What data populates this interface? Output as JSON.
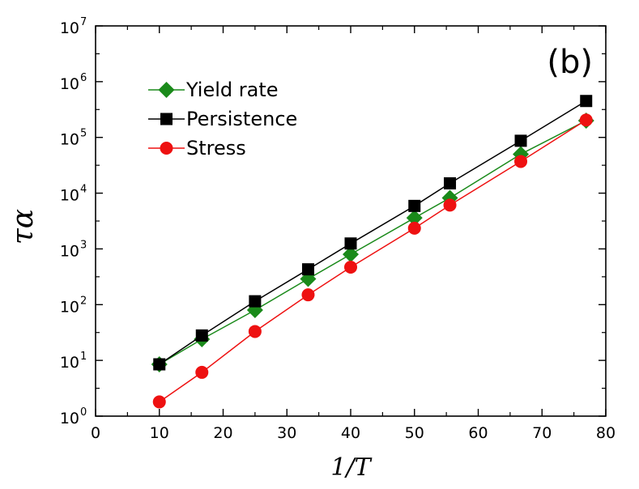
{
  "chart_data": {
    "type": "line",
    "panel_label": "(b)",
    "xlabel": "1/T",
    "ylabel": "τα",
    "xlim": [
      0,
      80
    ],
    "ylim": [
      1,
      10000000
    ],
    "yscale": "log",
    "grid": false,
    "legend_position": "top-left",
    "x_ticks": [
      "0",
      "10",
      "20",
      "30",
      "40",
      "50",
      "60",
      "70",
      "80"
    ],
    "y_tick_base": "10",
    "y_tick_exponents": [
      "0",
      "1",
      "2",
      "3",
      "4",
      "5",
      "6",
      "7"
    ],
    "series": [
      {
        "name": "Yield rate",
        "color": "#1a8a1a",
        "marker": "diamond",
        "x": [
          10,
          16.67,
          25,
          33.33,
          40,
          50,
          55.56,
          66.67,
          76.92
        ],
        "y": [
          8.5,
          24,
          80,
          290,
          800,
          3600,
          8200,
          50000,
          200000
        ]
      },
      {
        "name": "Persistence",
        "color": "#000000",
        "marker": "square",
        "x": [
          10,
          16.67,
          25,
          33.33,
          40,
          50,
          55.56,
          66.67,
          76.92
        ],
        "y": [
          8.5,
          28,
          115,
          430,
          1250,
          5900,
          15000,
          87000,
          450000
        ]
      },
      {
        "name": "Stress",
        "color": "#ee1111",
        "marker": "circle",
        "x": [
          10,
          16.67,
          25,
          33.33,
          40,
          50,
          55.56,
          66.67,
          76.92
        ],
        "y": [
          1.8,
          6.1,
          33,
          150,
          470,
          2350,
          6100,
          37000,
          205000
        ]
      }
    ]
  }
}
